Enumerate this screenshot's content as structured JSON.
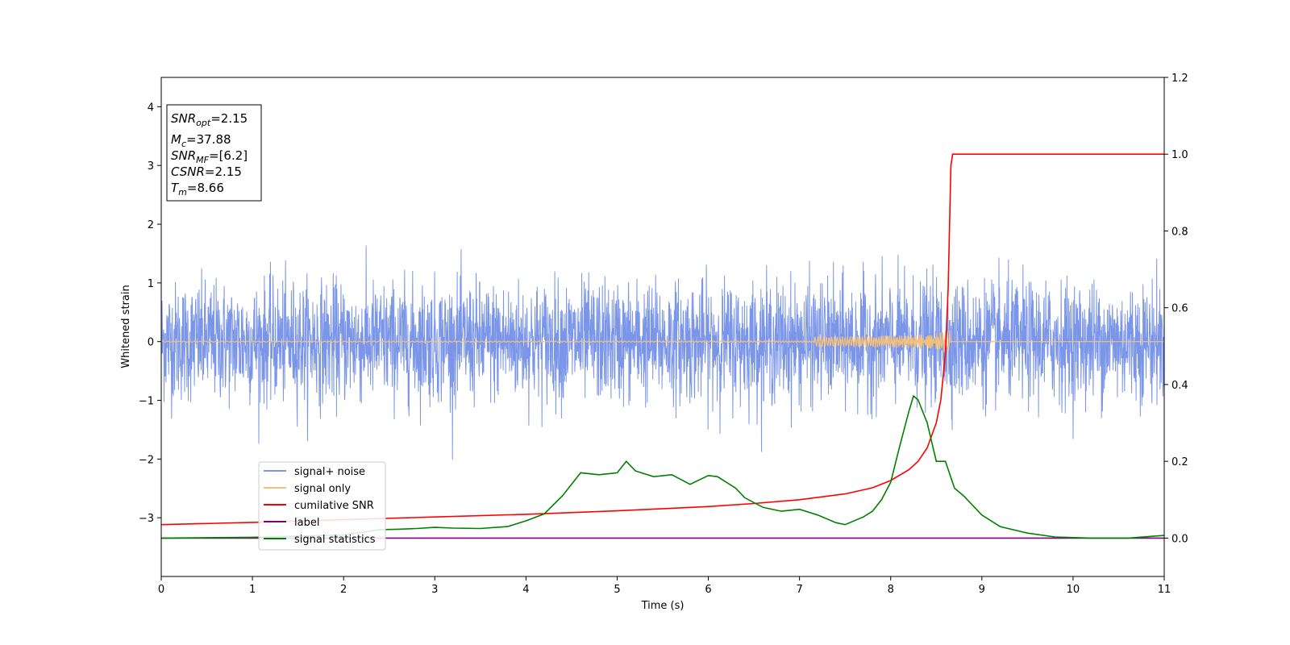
{
  "chart_data": {
    "type": "line",
    "xlabel": "Time (s)",
    "ylabel": "Whitened strain",
    "xlim": [
      0,
      11
    ],
    "ylim": [
      -4,
      4.5
    ],
    "y2lim": [
      -0.1,
      1.2
    ],
    "xticks": [
      "0",
      "1",
      "2",
      "3",
      "4",
      "5",
      "6",
      "7",
      "8",
      "9",
      "10",
      "11"
    ],
    "yticks": [
      "−3",
      "−2",
      "−1",
      "0",
      "1",
      "2",
      "3",
      "4"
    ],
    "y2ticks": [
      "0.0",
      "0.2",
      "0.4",
      "0.6",
      "0.8",
      "1.0",
      "1.2"
    ],
    "legend_position": "lower-left",
    "info_box": {
      "snr_opt": {
        "sym": "SNR",
        "sub": "opt",
        "val": "=2.15"
      },
      "mc": {
        "sym": "M",
        "sub": "c",
        "val": "=37.88"
      },
      "snr_mf": {
        "sym": "SNR",
        "sub": "MF",
        "val": "=[6.2]"
      },
      "csnr": {
        "sym": "CSNR",
        "sub": "",
        "val": "=2.15"
      },
      "tm": {
        "sym": "T",
        "sub": "m",
        "val": "=8.66"
      }
    },
    "series": [
      {
        "name": "signal+ noise",
        "axis": "left",
        "color": "#7b96e8",
        "description_kind": "noise",
        "sigma": 0.5,
        "x_range": [
          0,
          11
        ]
      },
      {
        "name": "signal only",
        "axis": "left",
        "color": "#f5c07a",
        "description_kind": "chirp",
        "merger_time": 8.66,
        "peak_amplitude": 0.25
      },
      {
        "name": "cumilative SNR",
        "axis": "right",
        "color": "#ff0000",
        "x": [
          0,
          1,
          2,
          3,
          4,
          5,
          6,
          6.5,
          7,
          7.5,
          7.8,
          8.0,
          8.2,
          8.3,
          8.4,
          8.5,
          8.55,
          8.6,
          8.63,
          8.66,
          8.68,
          9,
          10,
          11
        ],
        "y": [
          0.035,
          0.041,
          0.048,
          0.055,
          0.062,
          0.071,
          0.082,
          0.09,
          0.1,
          0.115,
          0.131,
          0.15,
          0.178,
          0.2,
          0.235,
          0.3,
          0.36,
          0.48,
          0.65,
          0.97,
          1.0,
          1.0,
          1.0,
          1.0
        ]
      },
      {
        "name": "label",
        "axis": "right",
        "color": "#800080",
        "x": [
          0,
          11
        ],
        "y": [
          0,
          0
        ]
      },
      {
        "name": "signal statistics",
        "axis": "right",
        "color": "#008000",
        "x": [
          0,
          1,
          2,
          2.4,
          2.6,
          2.8,
          3,
          3.2,
          3.5,
          3.8,
          4.0,
          4.2,
          4.4,
          4.6,
          4.8,
          5.0,
          5.1,
          5.2,
          5.4,
          5.6,
          5.8,
          6.0,
          6.1,
          6.3,
          6.4,
          6.6,
          6.8,
          7.0,
          7.2,
          7.4,
          7.5,
          7.7,
          7.8,
          7.9,
          8.0,
          8.1,
          8.2,
          8.25,
          8.3,
          8.4,
          8.5,
          8.6,
          8.7,
          8.8,
          9.0,
          9.2,
          9.5,
          9.8,
          10.2,
          10.6,
          11
        ],
        "y": [
          0.0,
          0.002,
          0.008,
          0.022,
          0.023,
          0.025,
          0.028,
          0.026,
          0.025,
          0.03,
          0.045,
          0.063,
          0.11,
          0.17,
          0.165,
          0.17,
          0.2,
          0.175,
          0.16,
          0.165,
          0.14,
          0.163,
          0.16,
          0.13,
          0.105,
          0.08,
          0.07,
          0.075,
          0.06,
          0.04,
          0.035,
          0.055,
          0.07,
          0.1,
          0.145,
          0.24,
          0.33,
          0.37,
          0.36,
          0.3,
          0.2,
          0.2,
          0.13,
          0.11,
          0.06,
          0.03,
          0.013,
          0.003,
          0.0,
          0.0,
          0.007
        ]
      }
    ]
  }
}
